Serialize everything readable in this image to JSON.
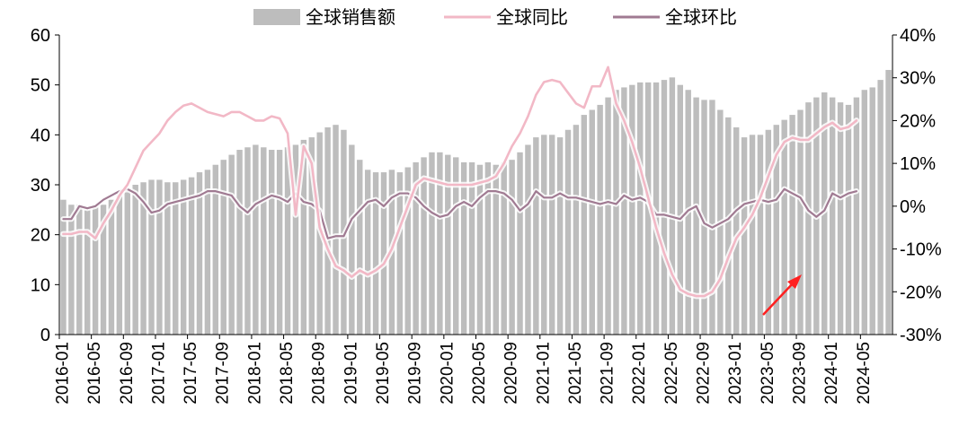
{
  "chart_data": {
    "type": "bar-line-combo",
    "title": "",
    "legend_placement": "top-center",
    "grid": false,
    "x_tick_labels": [
      "2016-01",
      "2016-05",
      "2016-09",
      "2017-01",
      "2017-05",
      "2017-09",
      "2018-01",
      "2018-05",
      "2018-09",
      "2019-01",
      "2019-05",
      "2019-09",
      "2020-01",
      "2020-05",
      "2020-09",
      "2021-01",
      "2021-05",
      "2021-09",
      "2022-01",
      "2022-05",
      "2022-09",
      "2023-01",
      "2023-05",
      "2023-09",
      "2024-01",
      "2024-05"
    ],
    "left_axis": {
      "ylim": [
        0,
        60
      ],
      "ticks": [
        "0",
        "10",
        "20",
        "30",
        "40",
        "50",
        "60"
      ]
    },
    "right_axis": {
      "ylim": [
        -30,
        40
      ],
      "ticks": [
        "-30%",
        "-20%",
        "-10%",
        "0%",
        "10%",
        "20%",
        "30%",
        "40%"
      ]
    },
    "series": [
      {
        "name": "全球销售额",
        "kind": "bar",
        "axis": "left",
        "color": "#bdbdbd",
        "values": [
          27.0,
          26.0,
          26.0,
          25.0,
          25.5,
          26.0,
          27.0,
          28.0,
          29.0,
          30.0,
          30.5,
          31.0,
          31.0,
          30.5,
          30.5,
          31.0,
          31.5,
          32.5,
          33.0,
          34.0,
          35.0,
          36.0,
          37.0,
          37.5,
          38.0,
          37.5,
          37.0,
          37.0,
          37.5,
          38.0,
          39.0,
          39.5,
          40.5,
          41.5,
          42.0,
          41.0,
          38.0,
          35.0,
          33.0,
          32.5,
          32.5,
          33.0,
          32.5,
          33.5,
          34.5,
          35.5,
          36.5,
          36.5,
          36.0,
          35.5,
          34.5,
          34.5,
          34.0,
          34.5,
          34.0,
          34.5,
          35.0,
          36.5,
          38.0,
          39.5,
          40.0,
          40.0,
          39.5,
          41.0,
          42.0,
          44.0,
          45.0,
          46.0,
          47.5,
          49.0,
          49.5,
          50.0,
          50.5,
          50.5,
          50.5,
          51.0,
          51.5,
          50.0,
          49.0,
          47.5,
          47.0,
          47.0,
          45.0,
          43.5,
          41.5,
          39.5,
          40.0,
          40.0,
          41.0,
          42.0,
          43.0,
          44.0,
          45.0,
          46.5,
          47.5,
          48.5,
          47.5,
          46.5,
          46.0,
          47.5,
          49.0,
          49.5,
          51.0,
          53.0
        ]
      },
      {
        "name": "全球同比",
        "kind": "line",
        "axis": "right",
        "color": "#f2b8c6",
        "values": [
          -6.5,
          -6.5,
          -6.0,
          -6.0,
          -7.5,
          -4.0,
          -1.0,
          2.5,
          5.0,
          9.0,
          13.0,
          15.0,
          17.0,
          20.0,
          22.0,
          23.5,
          24.0,
          23.0,
          22.0,
          21.5,
          21.0,
          22.0,
          22.0,
          21.0,
          20.0,
          20.0,
          21.0,
          20.5,
          17.0,
          -2.0,
          14.0,
          10.0,
          -5.0,
          -10.0,
          -14.0,
          -15.0,
          -16.5,
          -15.0,
          -16.0,
          -15.0,
          -13.5,
          -10.0,
          -5.0,
          0.0,
          5.0,
          6.5,
          6.0,
          5.5,
          5.0,
          5.0,
          5.0,
          5.0,
          5.5,
          6.0,
          7.0,
          10.0,
          14.0,
          17.0,
          21.0,
          26.0,
          29.0,
          29.5,
          29.0,
          26.5,
          24.0,
          23.0,
          28.0,
          28.0,
          32.5,
          24.0,
          20.0,
          15.0,
          9.0,
          2.0,
          -5.0,
          -11.0,
          -16.0,
          -19.5,
          -20.5,
          -21.0,
          -21.0,
          -20.0,
          -17.0,
          -12.0,
          -7.5,
          -5.0,
          -2.0,
          2.0,
          7.0,
          12.0,
          15.0,
          16.0,
          15.5,
          15.5,
          17.0,
          18.5,
          19.5,
          18.0,
          18.5,
          20.0
        ]
      },
      {
        "name": "全球环比",
        "kind": "line",
        "axis": "right",
        "color": "#a07a92",
        "values": [
          -3.0,
          -3.0,
          0.0,
          -0.5,
          0.0,
          1.5,
          2.5,
          3.5,
          4.0,
          3.0,
          1.0,
          -1.5,
          -1.0,
          0.5,
          1.0,
          1.5,
          2.0,
          2.5,
          3.5,
          3.5,
          3.0,
          2.5,
          0.0,
          -1.5,
          0.5,
          1.5,
          2.5,
          2.0,
          1.0,
          3.0,
          1.0,
          0.5,
          -1.0,
          -7.5,
          -7.0,
          -7.0,
          -3.0,
          -1.0,
          1.0,
          1.5,
          0.0,
          2.0,
          3.0,
          3.0,
          2.0,
          0.0,
          -1.5,
          -2.5,
          -2.0,
          0.0,
          1.0,
          0.0,
          2.0,
          3.5,
          3.5,
          3.0,
          1.5,
          -1.0,
          0.5,
          3.5,
          2.0,
          2.0,
          3.0,
          2.0,
          2.0,
          1.5,
          1.0,
          0.5,
          1.0,
          0.5,
          2.5,
          1.5,
          2.0,
          1.0,
          -2.0,
          -2.0,
          -2.5,
          -3.0,
          -1.0,
          0.0,
          -4.0,
          -5.0,
          -4.0,
          -3.0,
          -1.0,
          0.5,
          1.0,
          1.5,
          1.0,
          1.5,
          4.0,
          3.0,
          2.0,
          -1.0,
          -2.5,
          -1.0,
          3.0,
          2.0,
          3.0,
          3.5
        ]
      }
    ]
  },
  "annotation": {
    "kind": "arrow",
    "color": "#ff2020"
  }
}
